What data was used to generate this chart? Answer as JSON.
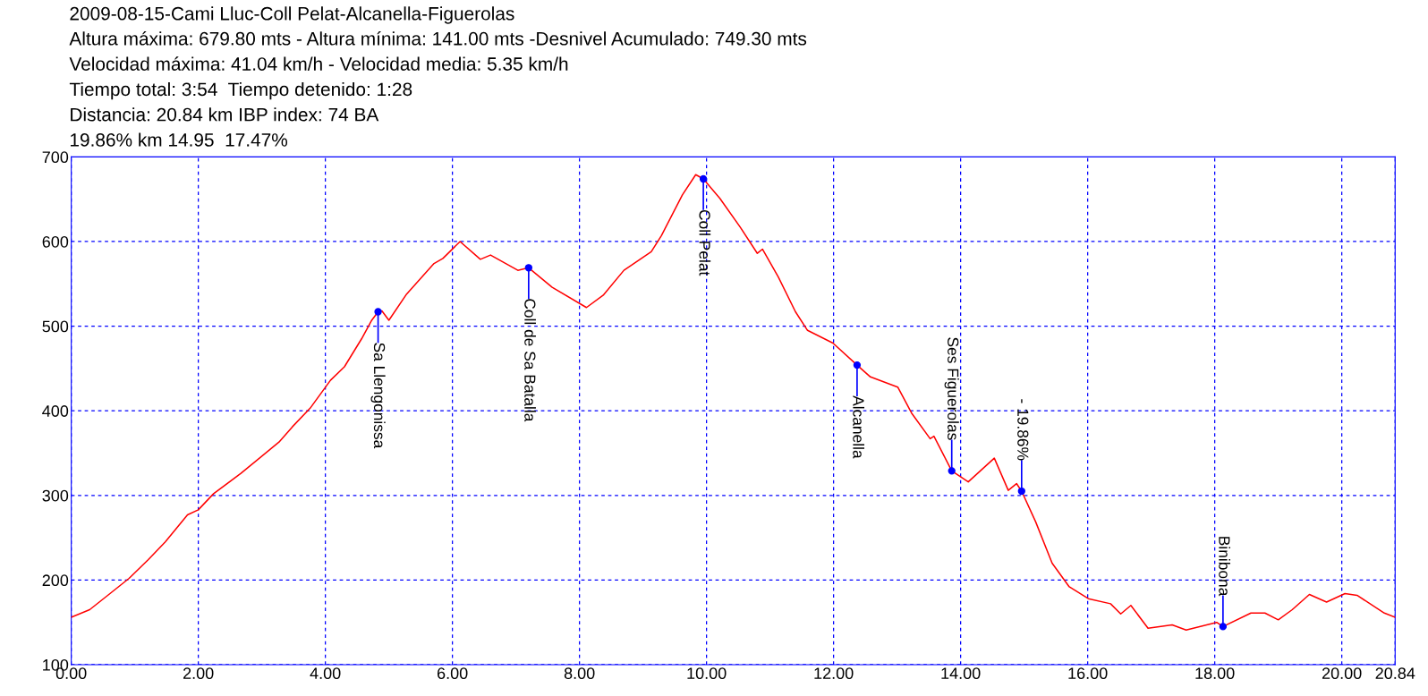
{
  "chart_data": {
    "type": "line",
    "title": "2009-08-15-Cami Lluc-Coll Pelat-Alcanella-Figuerolas",
    "annotations": [
      "Altura máxima: 679.80 mts - Altura mínima: 141.00 mts -Desnivel Acumulado: 749.30 mts",
      "Velocidad máxima: 41.04 km/h - Velocidad media: 5.35 km/h",
      "Tiempo total: 3:54  Tiempo detenido: 1:28",
      "Distancia: 20.84 km IBP index: 74 BA",
      "19.86% km 14.95  17.47%",
      {
        "text": "Sa Llengonissa",
        "x": 4.83,
        "y": 517
      },
      {
        "text": "Coll de Sa Batalla",
        "x": 7.2,
        "y": 569
      },
      {
        "text": "Coll Pelat",
        "x": 9.95,
        "y": 674
      },
      {
        "text": "Alcanella",
        "x": 12.37,
        "y": 454
      },
      {
        "text": "Ses Figuerolas",
        "x": 13.86,
        "y": 329
      },
      {
        "text": "- 19.86%",
        "x": 14.96,
        "y": 305
      },
      {
        "text": "Binibona",
        "x": 18.13,
        "y": 145
      }
    ],
    "series": [
      {
        "color": "#ff0000",
        "x": [
          0,
          0.29,
          0.61,
          0.91,
          1.21,
          1.48,
          1.83,
          2.0,
          2.24,
          2.67,
          3.27,
          3.48,
          3.76,
          4.08,
          4.3,
          4.57,
          4.73,
          4.83,
          4.89,
          5.0,
          5.27,
          5.71,
          5.85,
          6.12,
          6.44,
          6.6,
          7.03,
          7.2,
          7.57,
          8.11,
          8.38,
          8.7,
          9.13,
          9.29,
          9.62,
          9.83,
          9.95,
          10.21,
          10.53,
          10.8,
          10.88,
          11.13,
          11.4,
          11.59,
          11.99,
          12.37,
          12.58,
          13.01,
          13.23,
          13.52,
          13.58,
          13.86,
          14.12,
          14.53,
          14.75,
          14.88,
          14.96,
          15.18,
          15.44,
          15.71,
          16.01,
          16.36,
          16.52,
          16.68,
          16.95,
          17.33,
          17.55,
          18.03,
          18.13,
          18.57,
          18.79,
          19.0,
          19.22,
          19.49,
          19.76,
          20.05,
          20.24,
          20.67,
          20.84
        ],
        "values": [
          156,
          165,
          184,
          202,
          224,
          245,
          277,
          283,
          302,
          326,
          363,
          381,
          403,
          436,
          452,
          485,
          507,
          517,
          518,
          507,
          537,
          574,
          580,
          600,
          579,
          584,
          566,
          569,
          546,
          522,
          537,
          566,
          588,
          607,
          655,
          679,
          674,
          651,
          617,
          586,
          591,
          558,
          517,
          495,
          480,
          454,
          440,
          428,
          397,
          367,
          370,
          329,
          316,
          344,
          306,
          314,
          305,
          269,
          220,
          192,
          178,
          172,
          160,
          170,
          143,
          147,
          141,
          150,
          145,
          161,
          161,
          153,
          165,
          183,
          174,
          184,
          182,
          161,
          156
        ]
      }
    ],
    "xlim": [
      0,
      20.84
    ],
    "xticks": [
      {
        "value": 0,
        "label": "0.00"
      },
      {
        "value": 2,
        "label": "2.00"
      },
      {
        "value": 4,
        "label": "4.00"
      },
      {
        "value": 6,
        "label": "6.00"
      },
      {
        "value": 8,
        "label": "8.00"
      },
      {
        "value": 10,
        "label": "10.00"
      },
      {
        "value": 12,
        "label": "12.00"
      },
      {
        "value": 14,
        "label": "14.00"
      },
      {
        "value": 16,
        "label": "16.00"
      },
      {
        "value": 18,
        "label": "18.00"
      },
      {
        "value": 20,
        "label": "20.00"
      },
      {
        "value": 20.84,
        "label": "20.84"
      }
    ],
    "ylim": [
      100,
      700
    ],
    "yticks": [
      100,
      200,
      300,
      400,
      500,
      600,
      700
    ],
    "grid": true,
    "line_style": "solid",
    "marker": "none"
  }
}
